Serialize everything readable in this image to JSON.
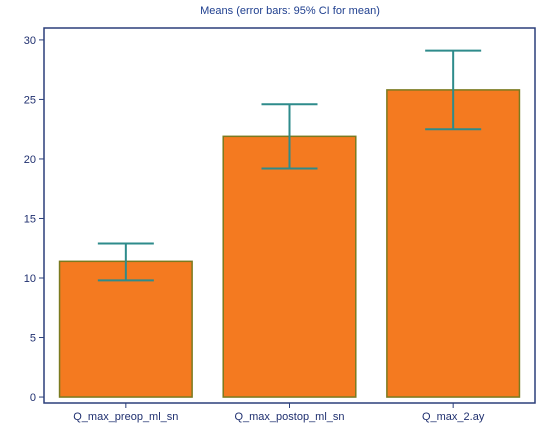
{
  "chart_data": {
    "type": "bar",
    "title": "Means  (error bars: 95% CI for mean)",
    "categories": [
      "Q_max_preop_ml_sn",
      "Q_max_postop_ml_sn",
      "Q_max_2.ay"
    ],
    "values": [
      11.4,
      21.9,
      25.8
    ],
    "error_low": [
      9.8,
      19.2,
      22.5
    ],
    "error_high": [
      12.9,
      24.6,
      29.1
    ],
    "ylim": [
      -0.5,
      31
    ],
    "yticks": [
      0,
      5,
      10,
      15,
      20,
      25,
      30
    ],
    "xlabel": "",
    "ylabel": "",
    "grid": false,
    "colors": {
      "bar_fill": "#f47a20",
      "bar_stroke": "#7a7a1f",
      "error_bar": "#2e8b8b",
      "axis": "#2b3f7a",
      "title": "#1f3f8f"
    }
  }
}
